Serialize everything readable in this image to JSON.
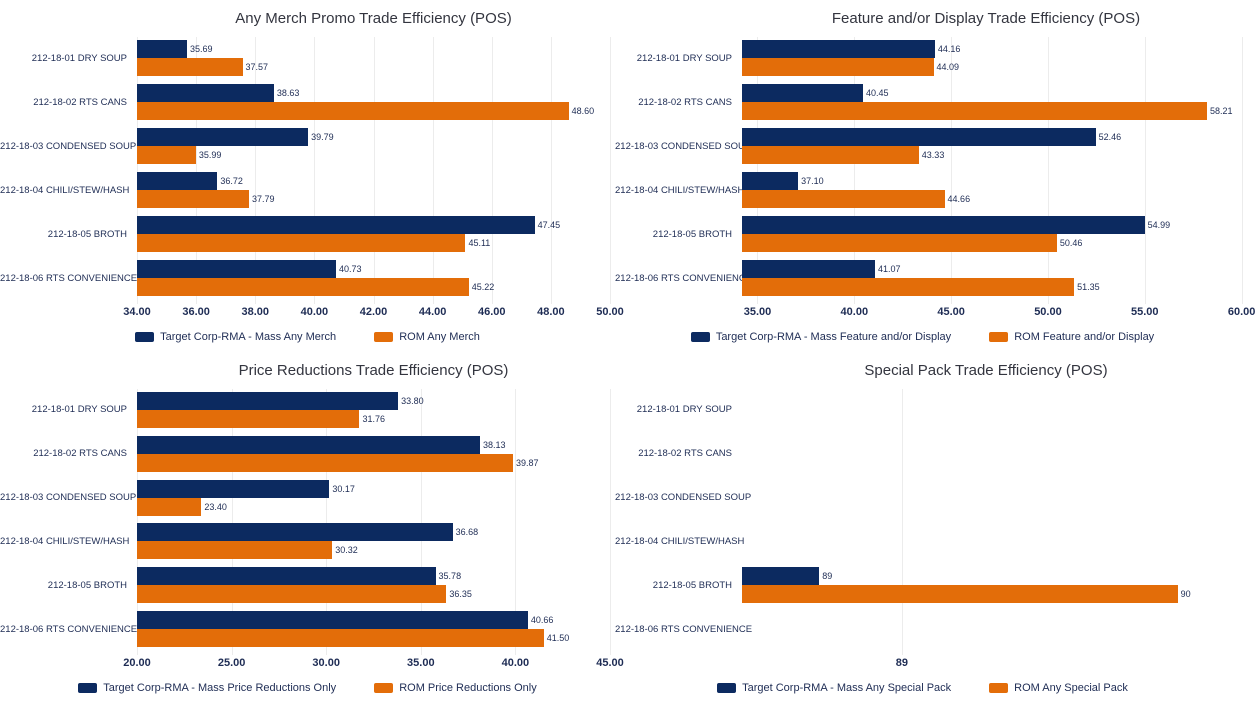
{
  "colors": {
    "navy": "#0c2a60",
    "orange": "#e36d09",
    "gridline": "#ececec",
    "text": "#1e2c54",
    "title": "#33353f"
  },
  "chart_data": [
    {
      "type": "bar",
      "orientation": "horizontal",
      "title": "Any Merch Promo Trade Efficiency (POS)",
      "categories": [
        "212-18-01 DRY SOUP",
        "212-18-02 RTS CANS",
        "212-18-03 CONDENSED SOUP",
        "212-18-04 CHILI/STEW/HASH",
        "212-18-05 BROTH",
        "212-18-06 RTS CONVENIENCE"
      ],
      "axis": {
        "min": 34,
        "max": 50,
        "ticks": [
          34,
          36,
          38,
          40,
          42,
          44,
          46,
          48,
          50
        ],
        "tick_labels": [
          "34.00",
          "36.00",
          "38.00",
          "40.00",
          "42.00",
          "44.00",
          "46.00",
          "48.00",
          "50.00"
        ]
      },
      "grid": true,
      "legend_position": "bottom",
      "series": [
        {
          "name": "Target Corp-RMA - Mass Any Merch",
          "color_key": "navy",
          "values": [
            35.69,
            38.63,
            39.79,
            36.72,
            47.45,
            40.73
          ],
          "labels": [
            "35.69",
            "38.63",
            "39.79",
            "36.72",
            "47.45",
            "40.73"
          ]
        },
        {
          "name": "ROM Any Merch",
          "color_key": "orange",
          "values": [
            37.57,
            48.6,
            35.99,
            37.79,
            45.11,
            45.22
          ],
          "labels": [
            "37.57",
            "48.60",
            "35.99",
            "37.79",
            "45.11",
            "45.22"
          ]
        }
      ]
    },
    {
      "type": "bar",
      "orientation": "horizontal",
      "title": "Feature and/or Display Trade Efficiency (POS)",
      "categories": [
        "212-18-01 DRY SOUP",
        "212-18-02 RTS CANS",
        "212-18-03 CONDENSED SOUP",
        "212-18-04 CHILI/STEW/HASH",
        "212-18-05 BROTH",
        "212-18-06 RTS CONVENIENCE"
      ],
      "axis": {
        "min": 34.2,
        "max": 59.4,
        "ticks": [
          35,
          40,
          45,
          50,
          55,
          60
        ],
        "tick_labels": [
          "35.00",
          "40.00",
          "45.00",
          "50.00",
          "55.00",
          "60.00"
        ]
      },
      "grid": true,
      "legend_position": "bottom",
      "series": [
        {
          "name": "Target Corp-RMA - Mass Feature and/or Display",
          "color_key": "navy",
          "values": [
            44.16,
            40.45,
            52.46,
            37.1,
            54.99,
            41.07
          ],
          "labels": [
            "44.16",
            "40.45",
            "52.46",
            "37.10",
            "54.99",
            "41.07"
          ]
        },
        {
          "name": "ROM Feature and/or Display",
          "color_key": "orange",
          "values": [
            44.09,
            58.21,
            43.33,
            44.66,
            50.46,
            51.35
          ],
          "labels": [
            "44.09",
            "58.21",
            "43.33",
            "44.66",
            "50.46",
            "51.35"
          ]
        }
      ]
    },
    {
      "type": "bar",
      "orientation": "horizontal",
      "title": "Price Reductions Trade Efficiency (POS)",
      "categories": [
        "212-18-01 DRY SOUP",
        "212-18-02 RTS CANS",
        "212-18-03 CONDENSED SOUP",
        "212-18-04 CHILI/STEW/HASH",
        "212-18-05 BROTH",
        "212-18-06 RTS CONVENIENCE"
      ],
      "axis": {
        "min": 20,
        "max": 45,
        "ticks": [
          20,
          25,
          30,
          35,
          40,
          45
        ],
        "tick_labels": [
          "20.00",
          "25.00",
          "30.00",
          "35.00",
          "40.00",
          "45.00"
        ]
      },
      "grid": true,
      "legend_position": "bottom",
      "series": [
        {
          "name": "Target Corp-RMA - Mass Price Reductions Only",
          "color_key": "navy",
          "values": [
            33.8,
            38.13,
            30.17,
            36.68,
            35.78,
            40.66
          ],
          "labels": [
            "33.80",
            "38.13",
            "30.17",
            "36.68",
            "35.78",
            "40.66"
          ]
        },
        {
          "name": "ROM Price Reductions Only",
          "color_key": "orange",
          "values": [
            31.76,
            39.87,
            23.4,
            30.32,
            36.35,
            41.5
          ],
          "labels": [
            "31.76",
            "39.87",
            "23.40",
            "30.32",
            "36.35",
            "41.50"
          ]
        }
      ]
    },
    {
      "type": "bar",
      "orientation": "horizontal",
      "title": "Special Pack Trade Efficiency (POS)",
      "categories": [
        "212-18-01 DRY SOUP",
        "212-18-02 RTS CANS",
        "212-18-03 CONDENSED SOUP",
        "212-18-04 CHILI/STEW/HASH",
        "212-18-05 BROTH",
        "212-18-06 RTS CONVENIENCE"
      ],
      "axis": {
        "min": 88.42,
        "max": 90.19,
        "ticks": [
          89
        ],
        "tick_labels": [
          "89"
        ]
      },
      "grid": true,
      "legend_position": "bottom",
      "series": [
        {
          "name": "Target Corp-RMA - Mass Any Special Pack",
          "color_key": "navy",
          "values": [
            null,
            null,
            null,
            null,
            88.7,
            null
          ],
          "labels": [
            null,
            null,
            null,
            null,
            "89",
            null
          ]
        },
        {
          "name": "ROM Any Special Pack",
          "color_key": "orange",
          "values": [
            null,
            null,
            null,
            null,
            90,
            null
          ],
          "labels": [
            null,
            null,
            null,
            null,
            "90",
            null
          ]
        }
      ]
    }
  ]
}
